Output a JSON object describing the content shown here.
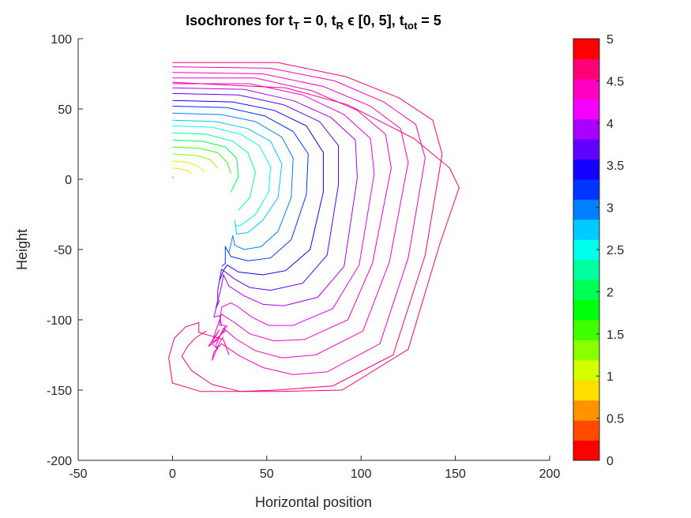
{
  "chart_data": {
    "type": "line",
    "title": {
      "parts": [
        {
          "text": "Isochrones for t",
          "sub": false
        },
        {
          "text": "T",
          "sub": true
        },
        {
          "text": " = 0, t",
          "sub": false
        },
        {
          "text": "R",
          "sub": true
        },
        {
          "text": " ϵ [0, 5], t",
          "sub": false
        },
        {
          "text": "tot",
          "sub": true
        },
        {
          "text": " = 5",
          "sub": false
        }
      ]
    },
    "xlabel": "Horizontal position",
    "ylabel": "Height",
    "xlim": [
      -50,
      200
    ],
    "ylim": [
      -200,
      100
    ],
    "xticks": [
      -50,
      0,
      50,
      100,
      150,
      200
    ],
    "yticks": [
      -200,
      -150,
      -100,
      -50,
      0,
      50,
      100
    ],
    "colorbar": {
      "range": [
        0,
        5
      ],
      "ticks": [
        0,
        0.5,
        1,
        1.5,
        2,
        2.5,
        3,
        3.5,
        4,
        4.5,
        5
      ],
      "colors": [
        "#FF0000",
        "#FF4A00",
        "#FF9400",
        "#FFDE00",
        "#D4FF00",
        "#8AFF00",
        "#3FFF00",
        "#00FF0B",
        "#00FF55",
        "#00FF9F",
        "#00FFEA",
        "#00CAFF",
        "#0080FF",
        "#0035FF",
        "#1500FF",
        "#6000FF",
        "#AA00FF",
        "#F400FF",
        "#FF00C0",
        "#FF0076",
        "#FF0000"
      ]
    },
    "series": [
      {
        "t": 0.25,
        "color": "#FF9400",
        "x": [
          0,
          0.4,
          0.5
        ],
        "y": [
          2,
          1.4,
          0.5
        ]
      },
      {
        "t": 0.5,
        "color": "#FFDE00",
        "x": [
          0,
          4,
          8,
          10
        ],
        "y": [
          8,
          7.5,
          6.2,
          3.5
        ]
      },
      {
        "t": 0.75,
        "color": "#D4FF00",
        "x": [
          0,
          8,
          14,
          17
        ],
        "y": [
          13,
          12,
          9,
          5
        ]
      },
      {
        "t": 1.0,
        "color": "#8AFF00",
        "x": [
          0,
          12,
          20,
          24
        ],
        "y": [
          18,
          17,
          14,
          8
        ]
      },
      {
        "t": 1.25,
        "color": "#3FFF00",
        "x": [
          0,
          14,
          24,
          29,
          31
        ],
        "y": [
          23,
          22,
          19,
          12,
          4
        ]
      },
      {
        "t": 1.5,
        "color": "#00FF55",
        "x": [
          0,
          16,
          28,
          34,
          35,
          31
        ],
        "y": [
          28,
          27,
          23,
          15,
          2,
          -9
        ]
      },
      {
        "t": 1.75,
        "color": "#00FF9F",
        "x": [
          0,
          18,
          32,
          40,
          44,
          41,
          35
        ],
        "y": [
          33,
          32,
          27,
          19,
          5,
          -13,
          -22
        ]
      },
      {
        "t": 2.0,
        "color": "#00FFEA",
        "x": [
          0,
          21,
          36,
          46,
          52,
          51,
          44,
          36,
          33
        ],
        "y": [
          38,
          37,
          32,
          24,
          9,
          -9,
          -25,
          -33,
          -33
        ]
      },
      {
        "t": 2.25,
        "color": "#00CAFF",
        "x": [
          0,
          23,
          40,
          52,
          58,
          56,
          48,
          40,
          34,
          33
        ],
        "y": [
          42,
          41,
          36,
          27,
          11,
          -13,
          -29,
          -38,
          -39,
          -29
        ]
      },
      {
        "t": 2.5,
        "color": "#0080FF",
        "x": [
          0,
          26,
          44,
          58,
          64,
          63,
          56,
          47,
          38,
          33,
          32,
          30
        ],
        "y": [
          47,
          46,
          41,
          30,
          15,
          -13,
          -37,
          -48,
          -50,
          -47,
          -40,
          -52
        ]
      },
      {
        "t": 2.75,
        "color": "#0035FF",
        "x": [
          0,
          29,
          49,
          64,
          72,
          71,
          63,
          52,
          40,
          31,
          28,
          28,
          26
        ],
        "y": [
          52,
          51,
          45,
          34,
          18,
          -11,
          -43,
          -56,
          -58,
          -55,
          -48,
          -60,
          -62
        ]
      },
      {
        "t": 3.0,
        "color": "#1500FF",
        "x": [
          0,
          32,
          54,
          71,
          80,
          80,
          73,
          60,
          48,
          35,
          29,
          27,
          25
        ],
        "y": [
          56,
          55,
          49,
          38,
          19,
          -9,
          -50,
          -65,
          -68,
          -66,
          -61,
          -65,
          -72
        ]
      },
      {
        "t": 3.25,
        "color": "#6000FF",
        "x": [
          0,
          35,
          59,
          78,
          88,
          88,
          82,
          69,
          52,
          41,
          33,
          26,
          24,
          24,
          23,
          25
        ],
        "y": [
          61,
          60,
          53,
          41,
          24,
          -4,
          -54,
          -74,
          -79,
          -77,
          -71,
          -64,
          -79,
          -86,
          -92,
          -86
        ]
      },
      {
        "t": 3.5,
        "color": "#AA00FF",
        "x": [
          0,
          38,
          64,
          84,
          97,
          98,
          91,
          77,
          59,
          48,
          38,
          30,
          27,
          26,
          22,
          25,
          26
        ],
        "y": [
          65,
          64,
          56,
          44,
          28,
          1,
          -62,
          -84,
          -90,
          -89,
          -83,
          -76,
          -68,
          -76,
          -98,
          -97,
          -104
        ]
      },
      {
        "t": 3.75,
        "color": "#F400FF",
        "x": [
          0,
          41,
          69,
          91,
          105,
          107,
          99,
          85,
          64,
          51,
          42,
          35,
          31,
          26,
          25,
          28,
          27
        ],
        "y": [
          68,
          68,
          60,
          46,
          29,
          4,
          -61,
          -92,
          -104,
          -104,
          -98,
          -91,
          -88,
          -91,
          -104,
          -104,
          -109
        ]
      },
      {
        "t": 4.0,
        "color": "#FF00C0",
        "x": [
          0,
          44,
          74,
          98,
          113,
          116,
          106,
          93,
          70,
          54,
          41,
          33,
          26,
          23,
          21,
          25,
          19,
          24,
          29
        ],
        "y": [
          72,
          72,
          63,
          49,
          32,
          8,
          -60,
          -100,
          -114,
          -115,
          -110,
          -102,
          -96,
          -108,
          -116,
          -107,
          -119,
          -114,
          -104
        ]
      },
      {
        "t": 4.25,
        "color": "#FF00C0",
        "x": [
          0,
          48,
          80,
          105,
          121,
          125,
          115,
          101,
          76,
          58,
          44,
          34,
          27,
          23,
          24,
          21,
          26,
          28
        ],
        "y": [
          76,
          75,
          66,
          52,
          36,
          12,
          -59,
          -108,
          -125,
          -127,
          -122,
          -114,
          -106,
          -118,
          -121,
          -117,
          -110,
          -108
        ]
      },
      {
        "t": 4.5,
        "color": "#FF00C0",
        "x": [
          0,
          52,
          86,
          112,
          129,
          134,
          125,
          110,
          82,
          64,
          48,
          36,
          26,
          22,
          21,
          25,
          27
        ],
        "y": [
          80,
          79,
          70,
          55,
          39,
          15,
          -56,
          -117,
          -137,
          -139,
          -134,
          -126,
          -117,
          -123,
          -129,
          -116,
          -112
        ]
      },
      {
        "t": 4.75,
        "color": "#FF0076",
        "x": [
          0,
          56,
          92,
          120,
          138,
          143,
          134,
          117,
          85,
          55,
          36,
          21,
          10,
          5,
          8,
          12,
          18
        ],
        "y": [
          83,
          83,
          73,
          58,
          42,
          18,
          -54,
          -125,
          -147,
          -150,
          -151,
          -146,
          -136,
          -126,
          -119,
          -113,
          -108
        ]
      },
      {
        "t": 5.0,
        "color": "#FF0076",
        "x": [
          0,
          60,
          93,
          128,
          147,
          152,
          142,
          125,
          90,
          56,
          36,
          15,
          0,
          -2,
          1,
          7,
          14,
          14,
          27,
          30
        ],
        "y": [
          69,
          65,
          53,
          29,
          8,
          -6,
          -45,
          -121,
          -150,
          -151,
          -151,
          -151,
          -145,
          -127,
          -113,
          -105,
          -102,
          -109,
          -114,
          -125
        ]
      }
    ]
  }
}
